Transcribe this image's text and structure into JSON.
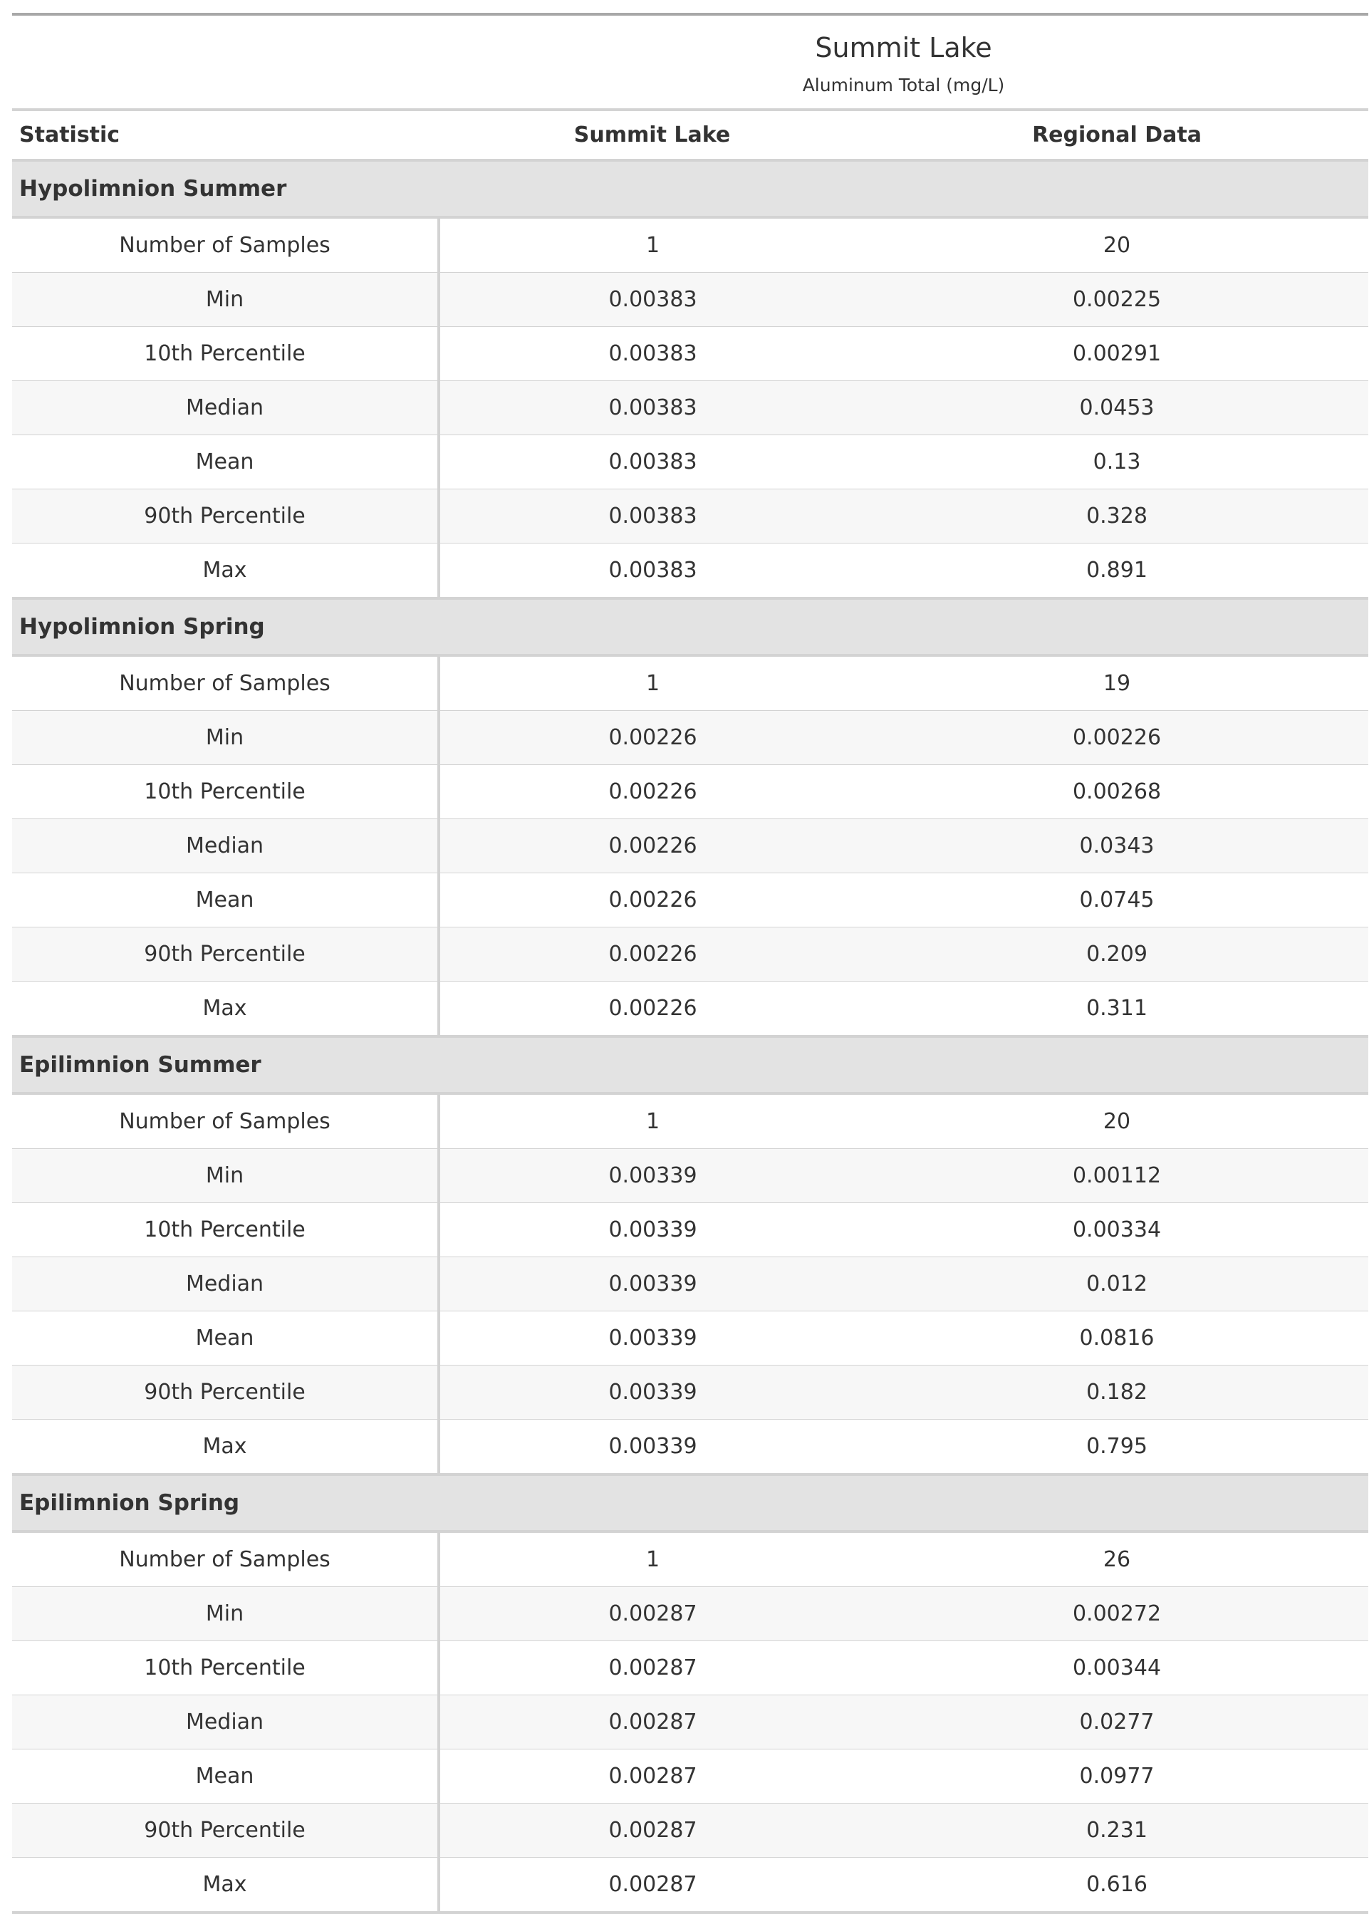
{
  "title": "Summit Lake",
  "subtitle": "Aluminum Total (mg/L)",
  "columns": [
    "Statistic",
    "Summit Lake",
    "Regional Data"
  ],
  "groups": [
    {
      "label": "Hypolimnion Summer",
      "rows": [
        {
          "stat": "Number of Samples",
          "lake": "1",
          "regional": "20"
        },
        {
          "stat": "Min",
          "lake": "0.00383",
          "regional": "0.00225"
        },
        {
          "stat": "10th Percentile",
          "lake": "0.00383",
          "regional": "0.00291"
        },
        {
          "stat": "Median",
          "lake": "0.00383",
          "regional": "0.0453"
        },
        {
          "stat": "Mean",
          "lake": "0.00383",
          "regional": "0.13"
        },
        {
          "stat": "90th Percentile",
          "lake": "0.00383",
          "regional": "0.328"
        },
        {
          "stat": "Max",
          "lake": "0.00383",
          "regional": "0.891"
        }
      ]
    },
    {
      "label": "Hypolimnion Spring",
      "rows": [
        {
          "stat": "Number of Samples",
          "lake": "1",
          "regional": "19"
        },
        {
          "stat": "Min",
          "lake": "0.00226",
          "regional": "0.00226"
        },
        {
          "stat": "10th Percentile",
          "lake": "0.00226",
          "regional": "0.00268"
        },
        {
          "stat": "Median",
          "lake": "0.00226",
          "regional": "0.0343"
        },
        {
          "stat": "Mean",
          "lake": "0.00226",
          "regional": "0.0745"
        },
        {
          "stat": "90th Percentile",
          "lake": "0.00226",
          "regional": "0.209"
        },
        {
          "stat": "Max",
          "lake": "0.00226",
          "regional": "0.311"
        }
      ]
    },
    {
      "label": "Epilimnion Summer",
      "rows": [
        {
          "stat": "Number of Samples",
          "lake": "1",
          "regional": "20"
        },
        {
          "stat": "Min",
          "lake": "0.00339",
          "regional": "0.00112"
        },
        {
          "stat": "10th Percentile",
          "lake": "0.00339",
          "regional": "0.00334"
        },
        {
          "stat": "Median",
          "lake": "0.00339",
          "regional": "0.012"
        },
        {
          "stat": "Mean",
          "lake": "0.00339",
          "regional": "0.0816"
        },
        {
          "stat": "90th Percentile",
          "lake": "0.00339",
          "regional": "0.182"
        },
        {
          "stat": "Max",
          "lake": "0.00339",
          "regional": "0.795"
        }
      ]
    },
    {
      "label": "Epilimnion Spring",
      "rows": [
        {
          "stat": "Number of Samples",
          "lake": "1",
          "regional": "26"
        },
        {
          "stat": "Min",
          "lake": "0.00287",
          "regional": "0.00272"
        },
        {
          "stat": "10th Percentile",
          "lake": "0.00287",
          "regional": "0.00344"
        },
        {
          "stat": "Median",
          "lake": "0.00287",
          "regional": "0.0277"
        },
        {
          "stat": "Mean",
          "lake": "0.00287",
          "regional": "0.0977"
        },
        {
          "stat": "90th Percentile",
          "lake": "0.00287",
          "regional": "0.231"
        },
        {
          "stat": "Max",
          "lake": "0.00287",
          "regional": "0.616"
        }
      ]
    }
  ]
}
